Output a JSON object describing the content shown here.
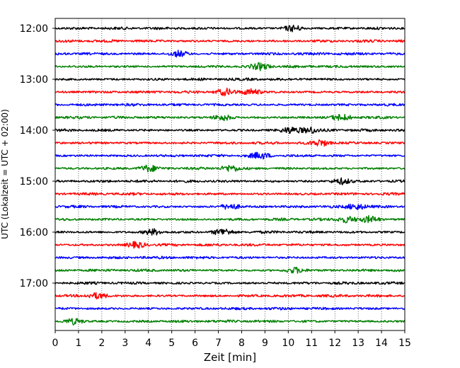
{
  "chart_data": {
    "type": "line",
    "title": "",
    "xlabel": "Zeit  [min]",
    "ylabel": "UTC (Lokalzeit = UTC + 02:00)",
    "xlim": [
      0,
      15
    ],
    "x_ticks": [
      0,
      1,
      2,
      3,
      4,
      5,
      6,
      7,
      8,
      9,
      10,
      11,
      12,
      13,
      14,
      15
    ],
    "x_grid": true,
    "y_grid": false,
    "trace_interval_min": 15,
    "start_time": "12:00",
    "y_tick_labels": [
      "12:00",
      "13:00",
      "14:00",
      "15:00",
      "16:00",
      "17:00"
    ],
    "color_cycle": [
      "#000000",
      "#ff0000",
      "#0000ff",
      "#008000"
    ],
    "traces": [
      {
        "start": "12:00",
        "color": "#000000",
        "events": [
          10.2
        ]
      },
      {
        "start": "12:15",
        "color": "#ff0000",
        "events": []
      },
      {
        "start": "12:30",
        "color": "#0000ff",
        "events": [
          5.3
        ]
      },
      {
        "start": "12:45",
        "color": "#008000",
        "events": [
          8.8
        ]
      },
      {
        "start": "13:00",
        "color": "#000000",
        "events": []
      },
      {
        "start": "13:15",
        "color": "#ff0000",
        "events": [
          7.3,
          8.4
        ]
      },
      {
        "start": "13:30",
        "color": "#0000ff",
        "events": []
      },
      {
        "start": "13:45",
        "color": "#008000",
        "events": [
          7.2,
          12.3
        ]
      },
      {
        "start": "14:00",
        "color": "#000000",
        "events": [
          10.1,
          10.9
        ]
      },
      {
        "start": "14:15",
        "color": "#ff0000",
        "events": [
          11.4
        ]
      },
      {
        "start": "14:30",
        "color": "#0000ff",
        "events": [
          8.8
        ]
      },
      {
        "start": "14:45",
        "color": "#008000",
        "events": [
          4.0,
          7.5
        ]
      },
      {
        "start": "15:00",
        "color": "#000000",
        "events": [
          12.3
        ]
      },
      {
        "start": "15:15",
        "color": "#ff0000",
        "events": []
      },
      {
        "start": "15:30",
        "color": "#0000ff",
        "events": [
          7.5,
          12.9
        ]
      },
      {
        "start": "15:45",
        "color": "#008000",
        "events": [
          12.5,
          13.5
        ]
      },
      {
        "start": "16:00",
        "color": "#000000",
        "events": [
          4.2,
          7.2
        ]
      },
      {
        "start": "16:15",
        "color": "#ff0000",
        "events": [
          3.5
        ]
      },
      {
        "start": "16:30",
        "color": "#0000ff",
        "events": []
      },
      {
        "start": "16:45",
        "color": "#008000",
        "events": [
          10.3
        ]
      },
      {
        "start": "17:00",
        "color": "#000000",
        "events": []
      },
      {
        "start": "17:15",
        "color": "#ff0000",
        "events": [
          1.8
        ]
      },
      {
        "start": "17:30",
        "color": "#0000ff",
        "events": []
      },
      {
        "start": "17:45",
        "color": "#008000",
        "events": [
          0.8
        ]
      }
    ]
  }
}
